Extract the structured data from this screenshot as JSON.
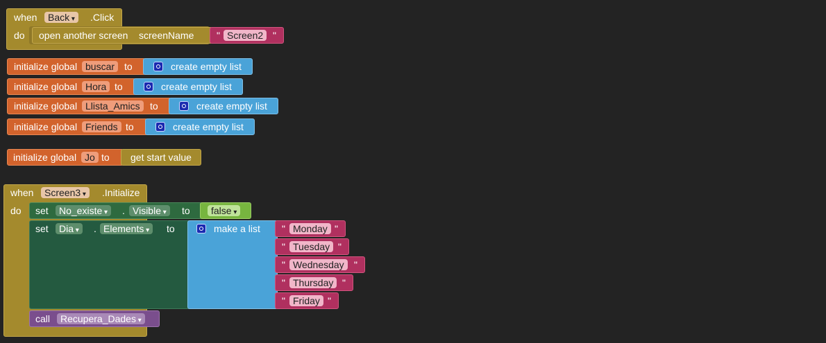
{
  "blocks": {
    "back_click": {
      "when": "when",
      "component": "Back",
      "event": ".Click",
      "do": "do",
      "open_screen": "open another screen",
      "screen_name_label": "screenName",
      "screen_value": "Screen2"
    },
    "globals": [
      {
        "init_label": "initialize global",
        "name": "buscar",
        "to": "to",
        "value": "create empty list"
      },
      {
        "init_label": "initialize global",
        "name": "Hora",
        "to": "to",
        "value": "create empty list"
      },
      {
        "init_label": "initialize global",
        "name": "Llista_Amics",
        "to": "to",
        "value": "create empty list"
      },
      {
        "init_label": "initialize global",
        "name": "Friends",
        "to": "to",
        "value": "create empty list"
      },
      {
        "init_label": "initialize global",
        "name": "Jo",
        "to": "to",
        "value": "get start value"
      }
    ],
    "screen3_init": {
      "when": "when",
      "component": "Screen3",
      "event": ".Initialize",
      "do": "do",
      "set1": {
        "set": "set",
        "component": "No_existe",
        "dot": ".",
        "property": "Visible",
        "to": "to",
        "value": "false"
      },
      "set2": {
        "set": "set",
        "component": "Dia",
        "dot": ".",
        "property": "Elements",
        "to": "to",
        "list_label": "make a list"
      },
      "days": [
        "Monday",
        "Tuesday",
        "Wednesday",
        "Thursday",
        "Friday"
      ],
      "call": {
        "label": "call",
        "procedure": "Recupera_Dades"
      }
    }
  },
  "quote": "\""
}
